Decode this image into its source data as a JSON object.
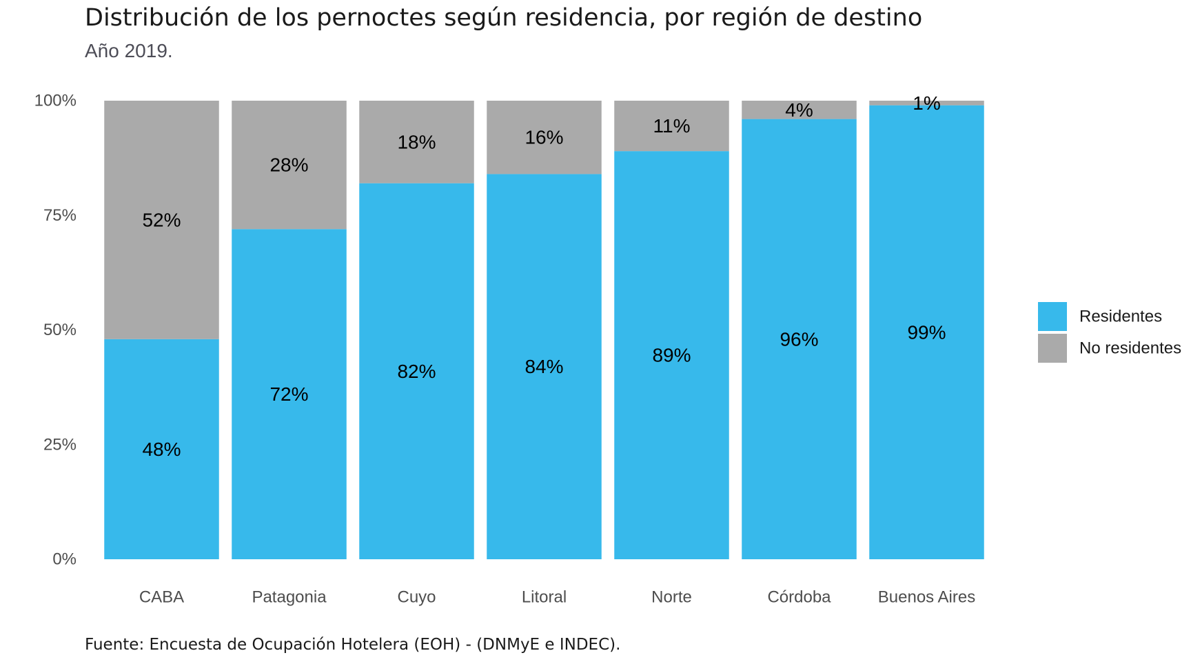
{
  "chart_data": {
    "type": "bar",
    "stacked": true,
    "title": "Distribución de los pernoctes según residencia, por región de destino",
    "subtitle": "Año 2019.",
    "source": "Fuente: Encuesta de Ocupación Hotelera (EOH) - (DNMyE e INDEC).",
    "xlabel": "",
    "ylabel": "",
    "categories": [
      "CABA",
      "Patagonia",
      "Cuyo",
      "Litoral",
      "Norte",
      "Córdoba",
      "Buenos Aires"
    ],
    "series": [
      {
        "name": "Residentes",
        "color": "#37b9eb",
        "values": [
          48,
          72,
          82,
          84,
          89,
          96,
          99
        ],
        "labels": [
          "48%",
          "72%",
          "82%",
          "84%",
          "89%",
          "96%",
          "99%"
        ]
      },
      {
        "name": "No residentes",
        "color": "#aaaaaa",
        "values": [
          52,
          28,
          18,
          16,
          11,
          4,
          1
        ],
        "labels": [
          "52%",
          "28%",
          "18%",
          "16%",
          "11%",
          "4%",
          "1%"
        ]
      }
    ],
    "ylim": [
      0,
      100
    ],
    "yticks": [
      0,
      25,
      50,
      75,
      100
    ],
    "ytick_labels": [
      "0%",
      "25%",
      "50%",
      "75%",
      "100%"
    ],
    "grid": false,
    "legend_position": "right"
  }
}
